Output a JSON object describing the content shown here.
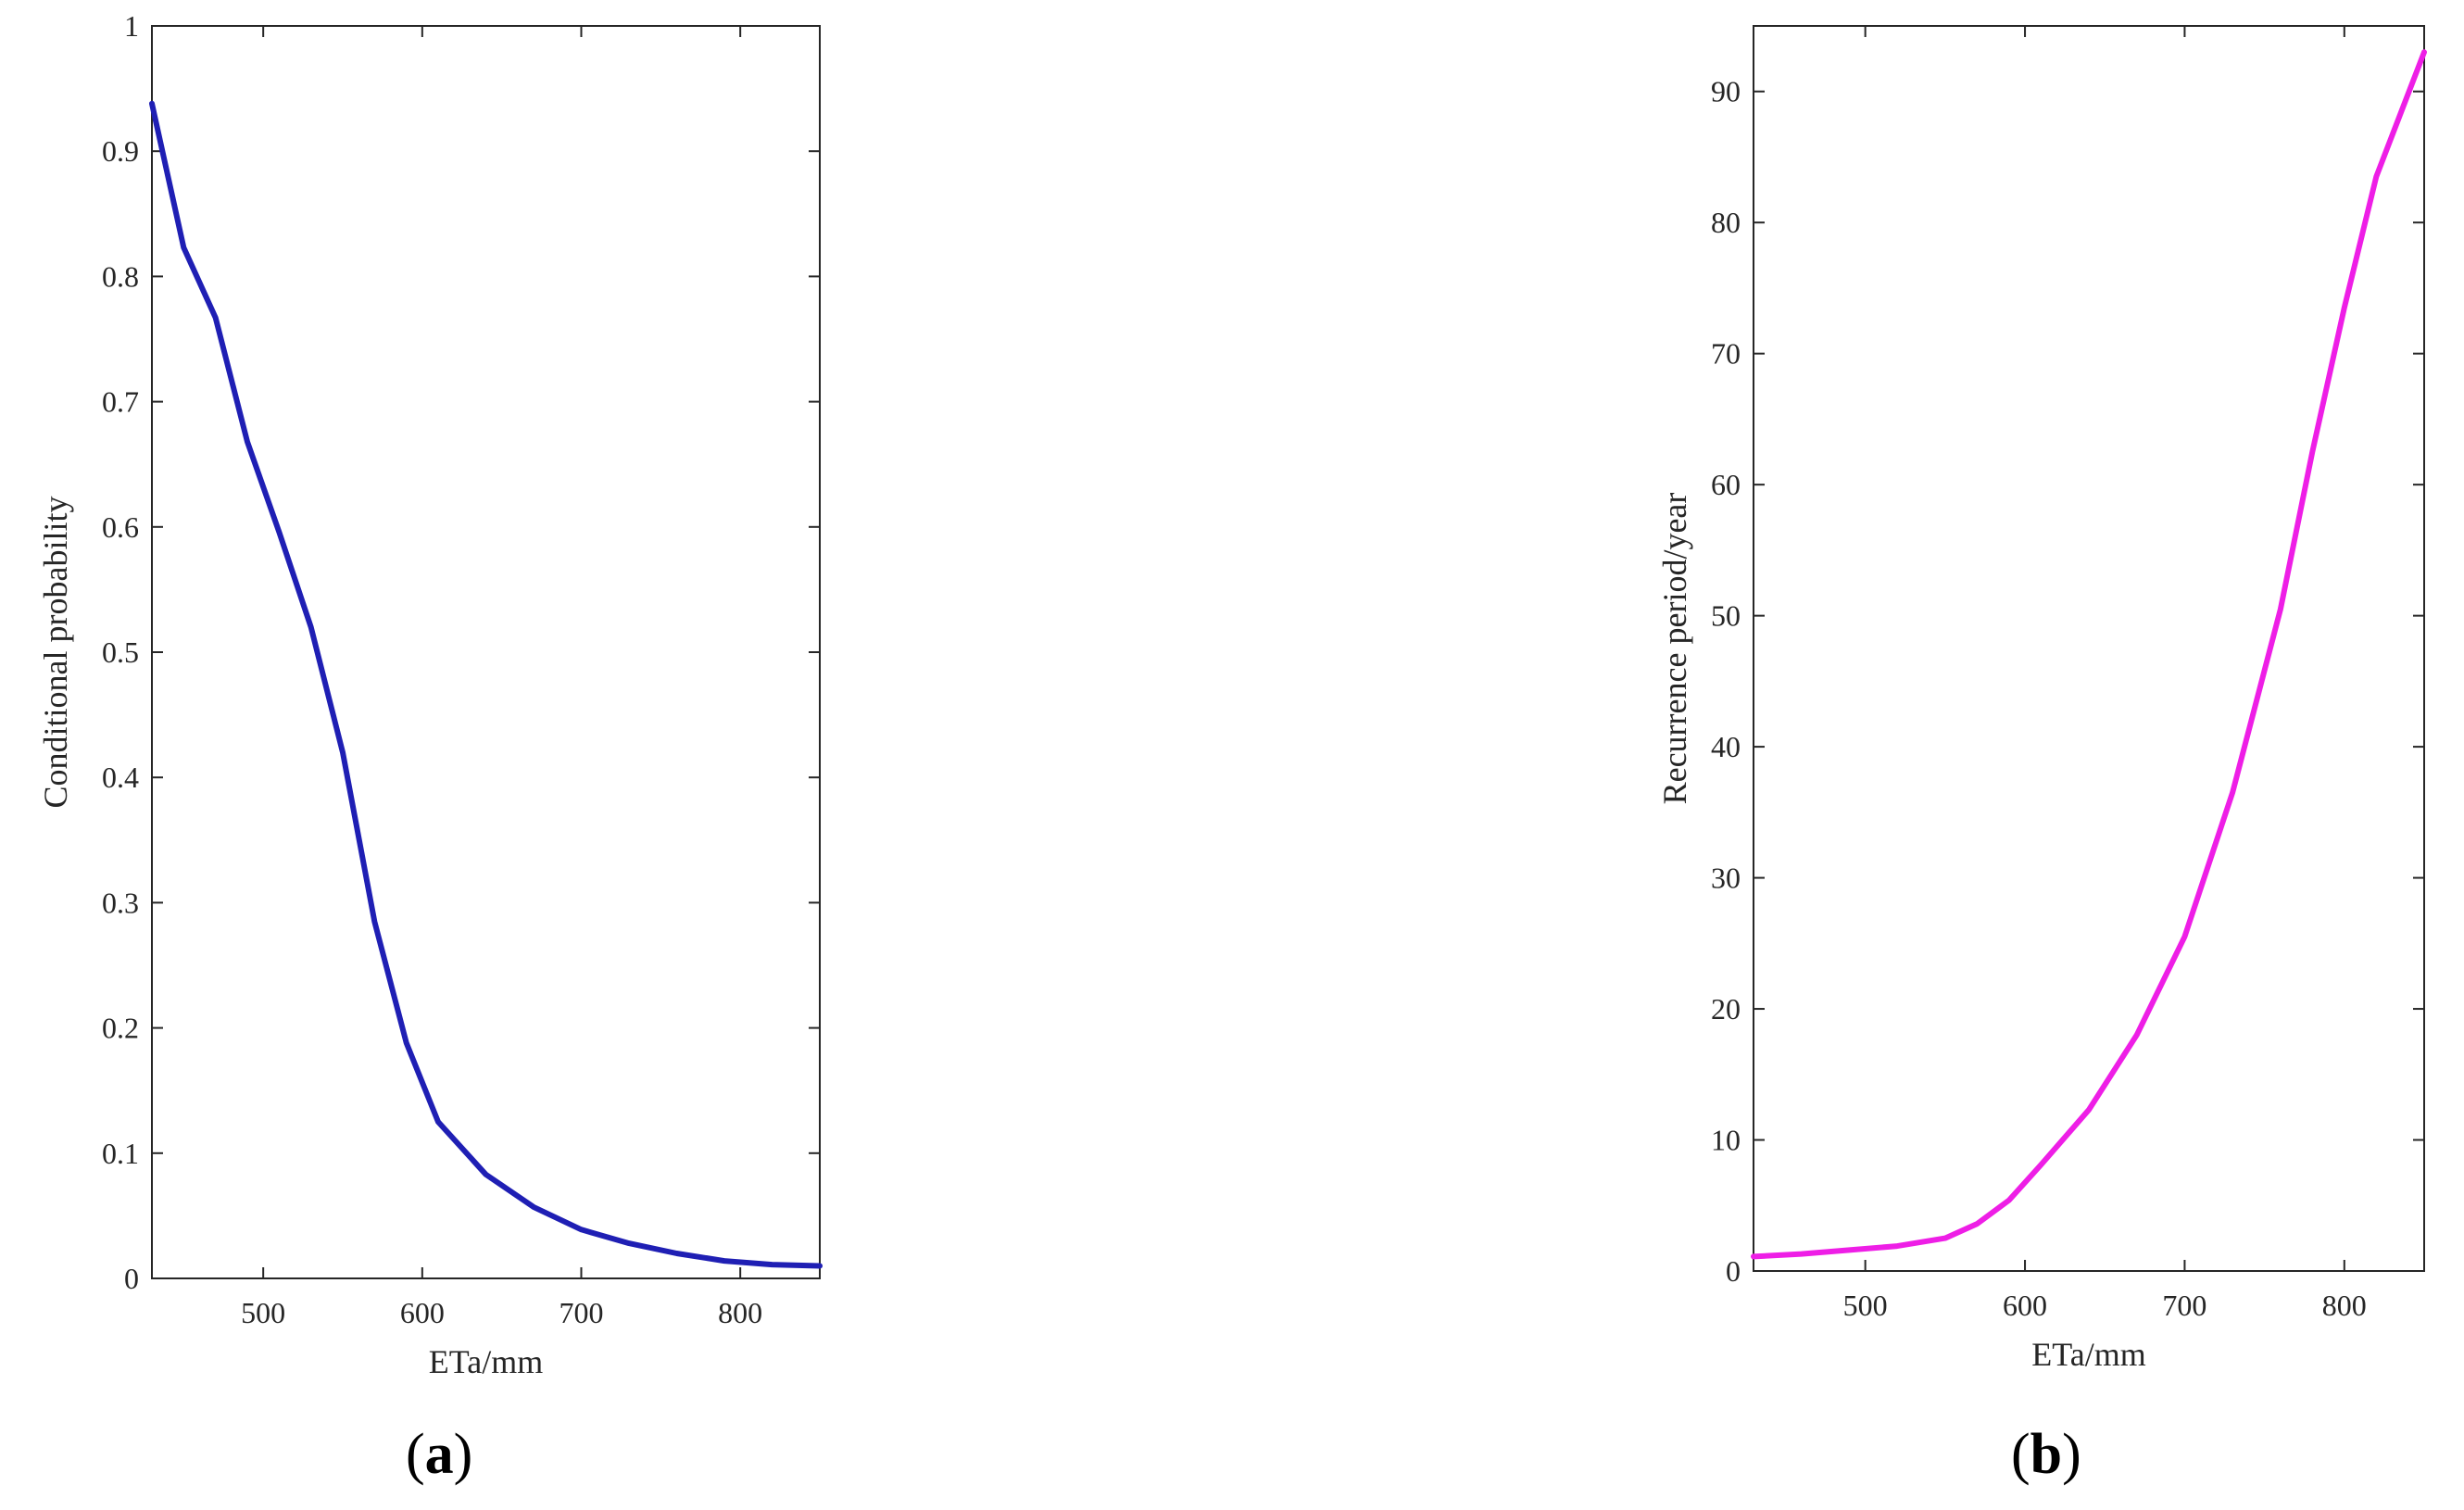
{
  "chart_data": [
    {
      "type": "line",
      "panel": "a",
      "xlabel": "ETa/mm",
      "ylabel": "Conditional probability",
      "xlim": [
        430,
        850
      ],
      "ylim": [
        0,
        1
      ],
      "xticks": [
        500,
        600,
        700,
        800
      ],
      "yticks": [
        0,
        0.1,
        0.2,
        0.3,
        0.4,
        0.5,
        0.6,
        0.7,
        0.8,
        0.9,
        1
      ],
      "ytick_labels": [
        "0",
        "0.1",
        "0.2",
        "0.3",
        "0.4",
        "0.5",
        "0.6",
        "0.7",
        "0.8",
        "0.9",
        "1"
      ],
      "grid": false,
      "color": "#1f1fb4",
      "series": [
        {
          "x": [
            430,
            450,
            470,
            490,
            510,
            530,
            550,
            570,
            590,
            610,
            640,
            670,
            700,
            730,
            760,
            790,
            820,
            850
          ],
          "y": [
            0.938,
            0.823,
            0.767,
            0.668,
            0.596,
            0.52,
            0.42,
            0.285,
            0.188,
            0.125,
            0.083,
            0.057,
            0.039,
            0.028,
            0.02,
            0.014,
            0.011,
            0.01
          ]
        }
      ]
    },
    {
      "type": "line",
      "panel": "b",
      "xlabel": "ETa/mm",
      "ylabel": "Recurrence period/year",
      "xlim": [
        430,
        850
      ],
      "ylim": [
        0,
        95
      ],
      "xticks": [
        500,
        600,
        700,
        800
      ],
      "yticks": [
        0,
        10,
        20,
        30,
        40,
        50,
        60,
        70,
        80,
        90
      ],
      "ytick_labels": [
        "0",
        "10",
        "20",
        "30",
        "40",
        "50",
        "60",
        "70",
        "80",
        "90"
      ],
      "grid": false,
      "color": "#ee1ee6",
      "series": [
        {
          "x": [
            430,
            460,
            490,
            520,
            550,
            570,
            590,
            610,
            640,
            670,
            700,
            730,
            760,
            780,
            800,
            820,
            850
          ],
          "y": [
            1.1,
            1.3,
            1.6,
            1.9,
            2.5,
            3.6,
            5.4,
            8.1,
            12.3,
            18.0,
            25.5,
            36.5,
            50.5,
            62.5,
            73.5,
            83.5,
            93.0
          ]
        }
      ]
    }
  ],
  "panels": {
    "a": {
      "open": "(",
      "letter": "a",
      "close": ")"
    },
    "b": {
      "open": "(",
      "letter": "b",
      "close": ")"
    }
  }
}
